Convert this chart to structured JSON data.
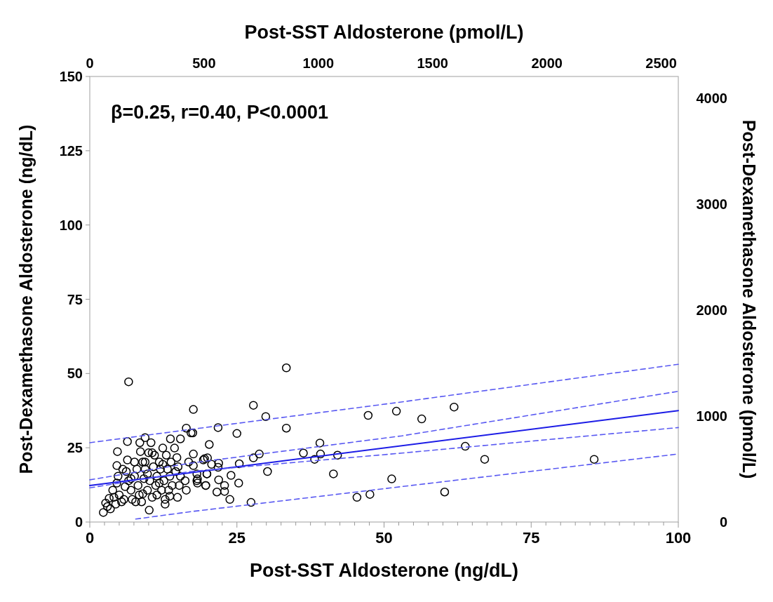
{
  "chart_data": {
    "type": "scatter",
    "xlabel": "Post-SST Aldosterone (ng/dL)",
    "x2label": "Post-SST Aldosterone (pmol/L)",
    "ylabel": "Post-Dexamethasone Aldosterone (ng/dL)",
    "y2label": "Post-Dexamethasone Aldosterone (pmol/L)",
    "annotations": [
      "β=0.25, r=0.40, P<0.0001"
    ],
    "xlim": [
      0,
      100
    ],
    "xticks": [
      0,
      {
        "value": 2.5,
        "label": null
      },
      {
        "value": 5,
        "label": null
      },
      {
        "value": 7.5,
        "label": null
      },
      {
        "value": 10,
        "label": null
      },
      {
        "value": 12.5,
        "label": null
      },
      {
        "value": 15,
        "label": null
      },
      {
        "value": 17.5,
        "label": null
      },
      {
        "value": 20,
        "label": null
      },
      {
        "value": 22.5,
        "label": null
      },
      25,
      {
        "value": 27.5,
        "label": null
      },
      {
        "value": 30,
        "label": null
      },
      {
        "value": 32.5,
        "label": null
      },
      {
        "value": 35,
        "label": null
      },
      {
        "value": 37.5,
        "label": null
      },
      {
        "value": 40,
        "label": null
      },
      {
        "value": 42.5,
        "label": null
      },
      {
        "value": 45,
        "label": null
      },
      {
        "value": 47.5,
        "label": null
      },
      50,
      {
        "value": 52.5,
        "label": null
      },
      {
        "value": 55,
        "label": null
      },
      {
        "value": 57.5,
        "label": null
      },
      {
        "value": 60,
        "label": null
      },
      {
        "value": 62.5,
        "label": null
      },
      {
        "value": 65,
        "label": null
      },
      {
        "value": 67.5,
        "label": null
      },
      {
        "value": 70,
        "label": null
      },
      {
        "value": 72.5,
        "label": null
      },
      75,
      {
        "value": 77.5,
        "label": null
      },
      {
        "value": 80,
        "label": null
      },
      {
        "value": 82.5,
        "label": null
      },
      {
        "value": 85,
        "label": null
      },
      {
        "value": 87.5,
        "label": null
      },
      {
        "value": 90,
        "label": null
      },
      {
        "value": 92.5,
        "label": null
      },
      {
        "value": 95,
        "label": null
      },
      {
        "value": 97.5,
        "label": null
      },
      100
    ],
    "x2lim": [
      0,
      2575
    ],
    "x2ticks": [
      0,
      500,
      1000,
      1500,
      2000,
      2500
    ],
    "ylim": [
      0,
      150
    ],
    "yticks": [
      0,
      25,
      50,
      75,
      100,
      125,
      150
    ],
    "y2lim": [
      0,
      4205
    ],
    "y2ticks": [
      0,
      1000,
      2000,
      3000,
      4000
    ],
    "grid": false,
    "series": [
      {
        "marker": "circle",
        "color": "#000000",
        "x": [
          6.6,
          17.6,
          16.4,
          17.2,
          4.7,
          6.4,
          8.5,
          9.4,
          10.4,
          13.7,
          15.4,
          2.3,
          10.1,
          14.9,
          17.6,
          33.4,
          27.8,
          29.9,
          21.8,
          25.0,
          33.4,
          47.3,
          52.1,
          20.3,
          17.5,
          19.5,
          20.0,
          20.7,
          21.9,
          21.8,
          25.4,
          27.8,
          28.8,
          30.2,
          19.9,
          18.3,
          18.3,
          19.7,
          21.9,
          24.0,
          25.3,
          22.9,
          22.9,
          21.6,
          23.8,
          27.4,
          36.3,
          39.1,
          38.2,
          39.2,
          42.1,
          41.4,
          45.4,
          47.6,
          51.3,
          17.6,
          56.4,
          61.9,
          63.8,
          67.1,
          85.7,
          60.3,
          2.7,
          3.3,
          3.5,
          3.0,
          3.9,
          4.6,
          4.8,
          4.6,
          5.0,
          5.4,
          6.0,
          6.2,
          6.6,
          7.0,
          7.2,
          7.6,
          7.6,
          8.0,
          8.2,
          8.4,
          8.8,
          9.0,
          9.2,
          9.4,
          9.8,
          10.0,
          10.2,
          10.6,
          10.8,
          11.0,
          11.2,
          11.4,
          11.8,
          12.0,
          12.2,
          12.4,
          12.6,
          12.8,
          12.8,
          13.0,
          13.2,
          13.6,
          13.8,
          14.0,
          14.4,
          14.6,
          14.8,
          15.2,
          15.4,
          16.2,
          16.4,
          16.8,
          18.2,
          19.3,
          19.7,
          19.9,
          18.2,
          8.6,
          10.6,
          6.4,
          5.6,
          4.1,
          4.4,
          9.0,
          11.4,
          13.6,
          7.8,
          5.8,
          7.0,
          9.8,
          11.8,
          13.4,
          15.0,
          9.4,
          12.4
        ],
        "values": [
          47.2,
          37.9,
          31.6,
          30.0,
          23.7,
          27.1,
          26.7,
          28.4,
          26.7,
          28.0,
          28.0,
          3.2,
          4.0,
          8.3,
          22.9,
          51.9,
          39.3,
          35.5,
          31.8,
          29.8,
          31.6,
          35.9,
          37.3,
          26.1,
          30.0,
          21.3,
          21.6,
          19.4,
          19.8,
          18.4,
          19.6,
          21.6,
          22.9,
          17.0,
          16.2,
          14.5,
          13.1,
          12.3,
          14.2,
          15.7,
          13.1,
          12.3,
          10.3,
          10.1,
          7.6,
          6.6,
          23.2,
          26.6,
          21.1,
          22.9,
          22.5,
          16.2,
          8.3,
          9.3,
          14.5,
          19.0,
          34.7,
          38.7,
          25.5,
          21.1,
          21.1,
          10.1,
          6.4,
          8.0,
          4.4,
          5.2,
          10.7,
          19.0,
          15.4,
          13.1,
          9.1,
          6.8,
          11.9,
          17.0,
          13.9,
          10.7,
          7.6,
          20.2,
          15.4,
          17.8,
          12.3,
          9.1,
          6.8,
          20.2,
          14.6,
          17.8,
          10.7,
          23.3,
          13.9,
          8.3,
          18.6,
          22.5,
          12.3,
          15.4,
          20.2,
          17.8,
          10.7,
          24.9,
          13.9,
          7.6,
          6.0,
          22.5,
          17.8,
          15.4,
          20.2,
          12.3,
          24.9,
          17.0,
          21.7,
          12.3,
          15.4,
          13.9,
          10.7,
          20.2,
          13.9,
          20.9,
          12.3,
          16.2,
          16.2,
          23.7,
          23.3,
          20.9,
          17.8,
          8.3,
          6.0,
          9.5,
          9.1,
          8.7,
          6.8,
          7.6,
          14.6,
          16.2,
          13.1,
          10.7,
          18.6,
          20.2,
          19.4
        ]
      },
      {
        "type": "line",
        "line_style": "solid",
        "color": "#1c1ce6",
        "x": [
          0,
          100
        ],
        "values": [
          12.3,
          37.5
        ]
      },
      {
        "type": "line",
        "line_style": "dashed",
        "color": "#5a5af2",
        "x": [
          0,
          17,
          53,
          100
        ],
        "values": [
          14.2,
          19.8,
          29.0,
          44.0
        ]
      },
      {
        "type": "line",
        "line_style": "dashed",
        "color": "#5a5af2",
        "x": [
          0,
          17,
          53,
          100
        ],
        "values": [
          11.5,
          17.0,
          23.2,
          31.8
        ]
      },
      {
        "type": "line",
        "line_style": "dashed",
        "color": "#5a5af2",
        "x": [
          0,
          17.2,
          52.9,
          100
        ],
        "values": [
          26.7,
          31.2,
          40.4,
          53.1
        ]
      },
      {
        "type": "line",
        "line_style": "dashed",
        "color": "#5a5af2",
        "x": [
          7.8,
          17.2,
          52.9,
          100
        ],
        "values": [
          1.0,
          3.5,
          11.9,
          22.9
        ]
      }
    ]
  }
}
